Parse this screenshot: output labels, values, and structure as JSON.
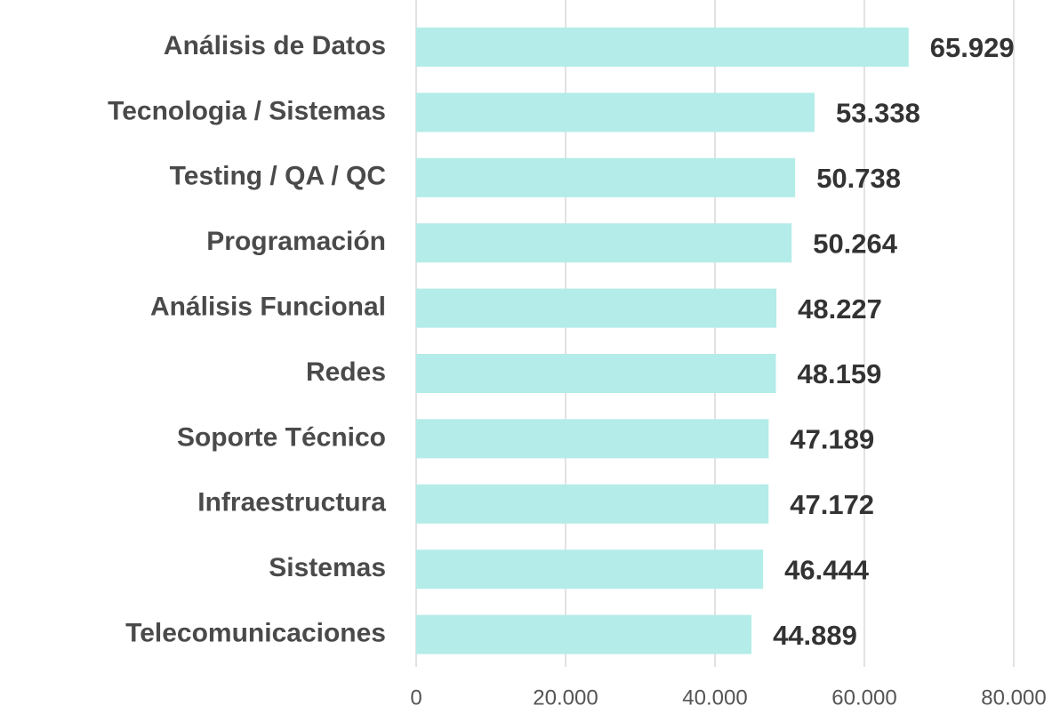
{
  "chart_data": {
    "type": "bar",
    "orientation": "horizontal",
    "categories": [
      "Análisis de Datos",
      "Tecnologia / Sistemas",
      "Testing / QA / QC",
      "Programación",
      "Análisis Funcional",
      "Redes",
      "Soporte Técnico",
      "Infraestructura",
      "Sistemas",
      "Telecomunicaciones"
    ],
    "values": [
      65929,
      53338,
      50738,
      50264,
      48227,
      48159,
      47189,
      47172,
      46444,
      44889
    ],
    "value_labels": [
      "65.929",
      "53.338",
      "50.738",
      "50.264",
      "48.227",
      "48.159",
      "47.189",
      "47.172",
      "46.444",
      "44.889"
    ],
    "color": "#b3ece8",
    "xlim": [
      0,
      80000
    ],
    "xticks": [
      0,
      {
        "value": 20000,
        "label": "20.000"
      },
      {
        "value": 40000,
        "label": "40.000"
      },
      {
        "value": 60000,
        "label": "60.000"
      },
      {
        "value": 80000,
        "label": "80.000"
      }
    ],
    "grid": true
  }
}
